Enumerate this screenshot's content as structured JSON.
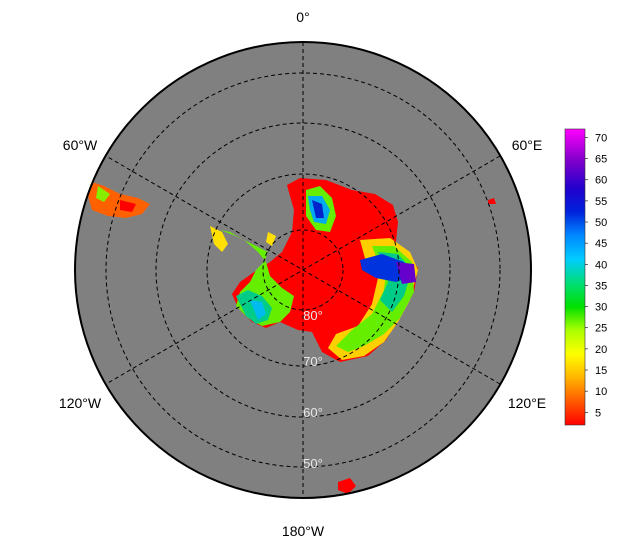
{
  "map": {
    "projection": "south polar stereographic",
    "background_color": "#808080",
    "longitude_labels": [
      "0°",
      "60°E",
      "120°E",
      "180°W",
      "120°W",
      "60°W"
    ],
    "latitude_labels": [
      "80°",
      "70°",
      "60°",
      "50°"
    ]
  },
  "colorbar": {
    "ticks": [
      "5",
      "10",
      "15",
      "20",
      "25",
      "30",
      "35",
      "40",
      "45",
      "50",
      "55",
      "60",
      "65",
      "70"
    ],
    "range": [
      2,
      72
    ],
    "colors": [
      "#ff0000",
      "#ff5a00",
      "#ffb400",
      "#ffff00",
      "#aaff00",
      "#00e000",
      "#00dd77",
      "#00ccff",
      "#0088ff",
      "#0022dd",
      "#2200cc",
      "#8800cc",
      "#ff00ff"
    ]
  }
}
